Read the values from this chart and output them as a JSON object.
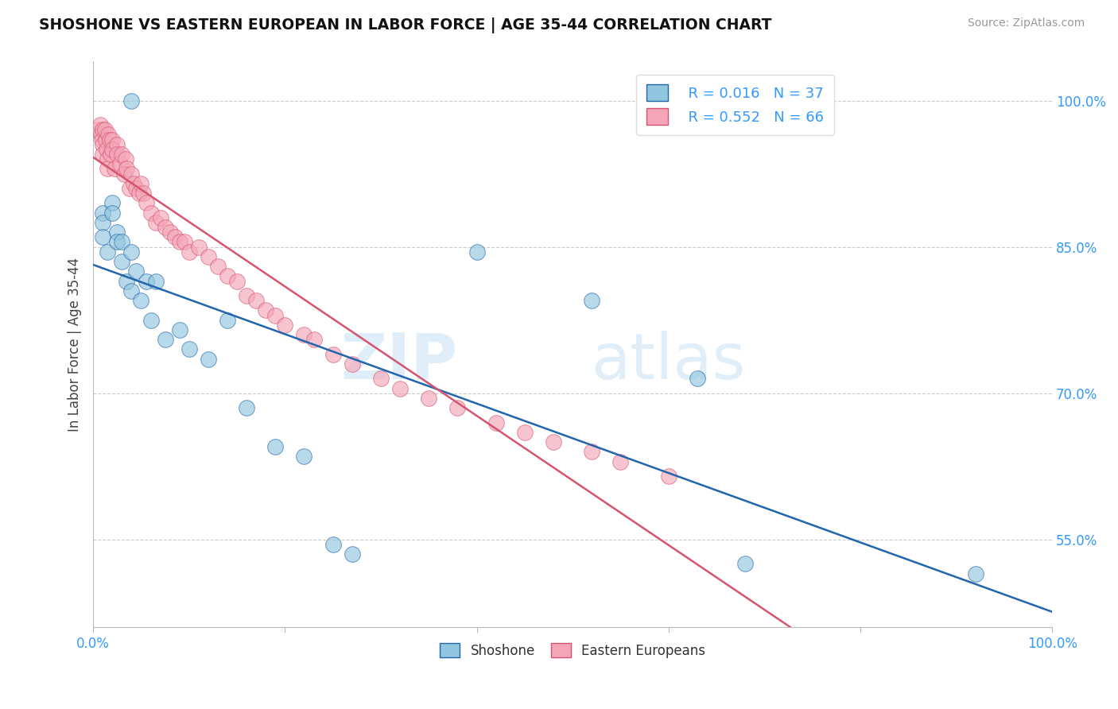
{
  "title": "SHOSHONE VS EASTERN EUROPEAN IN LABOR FORCE | AGE 35-44 CORRELATION CHART",
  "source": "Source: ZipAtlas.com",
  "ylabel": "In Labor Force | Age 35-44",
  "xlim": [
    0.0,
    1.0
  ],
  "ylim": [
    0.46,
    1.04
  ],
  "yticks": [
    0.55,
    0.7,
    0.85,
    1.0
  ],
  "ytick_labels": [
    "55.0%",
    "70.0%",
    "85.0%",
    "100.0%"
  ],
  "shoshone_color": "#92c5de",
  "eastern_color": "#f4a6b8",
  "shoshone_line_color": "#2166ac",
  "eastern_line_color": "#d6546e",
  "shoshone_x": [
    0.04,
    0.01,
    0.01,
    0.01,
    0.015,
    0.02,
    0.02,
    0.025,
    0.025,
    0.03,
    0.03,
    0.035,
    0.04,
    0.04,
    0.045,
    0.05,
    0.055,
    0.06,
    0.065,
    0.075,
    0.09,
    0.1,
    0.12,
    0.14,
    0.16,
    0.19,
    0.22,
    0.25,
    0.27,
    0.4,
    0.52,
    0.63,
    0.68,
    0.92
  ],
  "shoshone_y": [
    1.0,
    0.885,
    0.875,
    0.86,
    0.845,
    0.895,
    0.885,
    0.865,
    0.855,
    0.855,
    0.835,
    0.815,
    0.845,
    0.805,
    0.825,
    0.795,
    0.815,
    0.775,
    0.815,
    0.755,
    0.765,
    0.745,
    0.735,
    0.775,
    0.685,
    0.645,
    0.635,
    0.545,
    0.535,
    0.845,
    0.795,
    0.715,
    0.525,
    0.515
  ],
  "eastern_x": [
    0.005,
    0.007,
    0.008,
    0.009,
    0.01,
    0.01,
    0.01,
    0.012,
    0.013,
    0.014,
    0.015,
    0.015,
    0.016,
    0.017,
    0.018,
    0.02,
    0.02,
    0.022,
    0.025,
    0.025,
    0.028,
    0.03,
    0.032,
    0.034,
    0.035,
    0.038,
    0.04,
    0.042,
    0.045,
    0.048,
    0.05,
    0.052,
    0.055,
    0.06,
    0.065,
    0.07,
    0.075,
    0.08,
    0.085,
    0.09,
    0.095,
    0.1,
    0.11,
    0.12,
    0.13,
    0.14,
    0.15,
    0.16,
    0.17,
    0.18,
    0.19,
    0.2,
    0.22,
    0.23,
    0.25,
    0.27,
    0.3,
    0.32,
    0.35,
    0.38,
    0.42,
    0.45,
    0.48,
    0.52,
    0.55,
    0.6
  ],
  "eastern_y": [
    0.97,
    0.975,
    0.965,
    0.96,
    0.97,
    0.955,
    0.945,
    0.97,
    0.96,
    0.95,
    0.94,
    0.93,
    0.965,
    0.96,
    0.945,
    0.96,
    0.95,
    0.93,
    0.955,
    0.945,
    0.935,
    0.945,
    0.925,
    0.94,
    0.93,
    0.91,
    0.925,
    0.915,
    0.91,
    0.905,
    0.915,
    0.905,
    0.895,
    0.885,
    0.875,
    0.88,
    0.87,
    0.865,
    0.86,
    0.855,
    0.855,
    0.845,
    0.85,
    0.84,
    0.83,
    0.82,
    0.815,
    0.8,
    0.795,
    0.785,
    0.78,
    0.77,
    0.76,
    0.755,
    0.74,
    0.73,
    0.715,
    0.705,
    0.695,
    0.685,
    0.67,
    0.66,
    0.65,
    0.64,
    0.63,
    0.615
  ]
}
